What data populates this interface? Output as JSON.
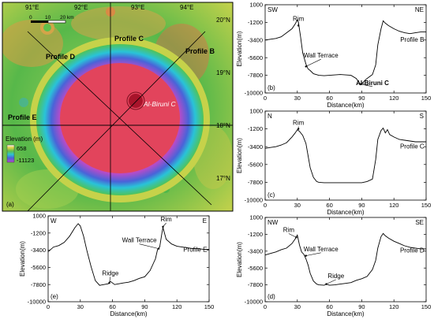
{
  "map": {
    "panel_label": "(a)",
    "lon_labels": [
      "91°E",
      "92°E",
      "93°E",
      "94°E"
    ],
    "lat_labels": [
      "20°N",
      "19°N",
      "18°N",
      "17°N"
    ],
    "scale_ticks": [
      "0",
      "10",
      "20 km"
    ],
    "profile_labels": [
      "Profile C",
      "Profile B",
      "Profile D",
      "Profile E"
    ],
    "crater_label": "Al-Biruni C",
    "legend": {
      "title": "Elevation (m)",
      "high": "658",
      "low": "-11123"
    },
    "colors": {
      "rim_green": "#5fb845",
      "floor_red": "#e2445c",
      "wall_blue": "#4a63d8",
      "wall_violet": "#b44cc9"
    }
  },
  "chart_data": [
    {
      "type": "line",
      "panel_label": "(b)",
      "profile_label": "Profile  B",
      "dir_left": "SW",
      "dir_right": "NE",
      "xlabel": "Distance(km)",
      "ylabel": "Elevation(m)",
      "xlim": [
        0,
        150
      ],
      "ylim": [
        -10000,
        1000
      ],
      "xticks": [
        0,
        30,
        60,
        90,
        120,
        150
      ],
      "yticks": [
        1000,
        -1200,
        -3400,
        -5600,
        -7800,
        -10000
      ],
      "annotations": [
        {
          "text": "Rim",
          "x": 31,
          "y": -1600,
          "ax": 31,
          "ay": -1000
        },
        {
          "text": "Wall Terrace",
          "x": 38,
          "y": -6700,
          "ax": 52,
          "ay": -5600
        },
        {
          "text": "Al-Biruni C",
          "x": 89,
          "y": -8900,
          "ax": 100,
          "ay": -9000,
          "bold": true
        }
      ],
      "x": [
        0,
        5,
        10,
        15,
        20,
        25,
        28,
        30,
        31,
        33,
        35,
        38,
        40,
        42,
        45,
        50,
        55,
        60,
        70,
        80,
        85,
        87,
        89,
        91,
        94,
        97,
        100,
        103,
        105,
        108,
        110,
        112,
        115,
        120,
        125,
        130,
        135,
        140,
        145,
        150
      ],
      "y": [
        -3400,
        -3300,
        -3200,
        -3000,
        -2500,
        -2000,
        -1400,
        -900,
        -1200,
        -3000,
        -5000,
        -6400,
        -7000,
        -7200,
        -7600,
        -7800,
        -7850,
        -7800,
        -7700,
        -7800,
        -8200,
        -8600,
        -9000,
        -8700,
        -8300,
        -8000,
        -7700,
        -6500,
        -4000,
        -2000,
        -1000,
        -1300,
        -1600,
        -2000,
        -2300,
        -2500,
        -2600,
        -2500,
        -2400,
        -2400
      ]
    },
    {
      "type": "line",
      "panel_label": "(c)",
      "profile_label": "Profile  C",
      "dir_left": "N",
      "dir_right": "S",
      "xlabel": "Distance(km)",
      "ylabel": "Elevation(m)",
      "xlim": [
        0,
        150
      ],
      "ylim": [
        -10000,
        1000
      ],
      "xticks": [
        0,
        30,
        60,
        90,
        120,
        150
      ],
      "yticks": [
        1000,
        -1200,
        -3400,
        -5600,
        -7800,
        -10000
      ],
      "annotations": [
        {
          "text": "Rim",
          "x": 31,
          "y": -1200,
          "ax": 31,
          "ay": -700
        }
      ],
      "x": [
        0,
        5,
        10,
        15,
        20,
        25,
        28,
        30,
        32,
        35,
        38,
        40,
        42,
        45,
        48,
        50,
        55,
        60,
        70,
        80,
        90,
        95,
        100,
        103,
        105,
        108,
        110,
        112,
        114,
        116,
        120,
        125,
        130,
        135,
        140,
        145,
        150
      ],
      "y": [
        -3600,
        -3500,
        -3400,
        -3200,
        -2900,
        -2200,
        -1700,
        -1300,
        -1500,
        -2000,
        -3000,
        -4500,
        -6000,
        -7200,
        -7700,
        -7800,
        -7850,
        -7850,
        -7850,
        -7850,
        -7850,
        -7700,
        -7400,
        -5000,
        -2500,
        -1400,
        -1100,
        -1700,
        -1300,
        -1900,
        -2200,
        -2500,
        -2600,
        -2700,
        -2800,
        -2800,
        -2800
      ]
    },
    {
      "type": "line",
      "panel_label": "(e)",
      "profile_label": "Profile E",
      "dir_left": "W",
      "dir_right": "E",
      "xlabel": "Distance(km)",
      "ylabel": "Elevation(m)",
      "xlim": [
        0,
        150
      ],
      "ylim": [
        -10000,
        1000
      ],
      "xticks": [
        0,
        30,
        60,
        90,
        120,
        150
      ],
      "yticks": [
        1000,
        -1200,
        -3400,
        -5600,
        -7800,
        -10000
      ],
      "annotations": [
        {
          "text": "Rim",
          "x": 107,
          "y": -400,
          "ax": 110,
          "ay": 300
        },
        {
          "text": "Wall Terrace",
          "x": 103,
          "y": -3200,
          "ax": 85,
          "ay": -2400
        },
        {
          "text": "Ridge",
          "x": 57,
          "y": -7600,
          "ax": 58,
          "ay": -6600
        }
      ],
      "x": [
        0,
        5,
        10,
        15,
        20,
        25,
        28,
        30,
        33,
        36,
        40,
        44,
        48,
        52,
        56,
        58,
        62,
        66,
        70,
        75,
        80,
        85,
        90,
        95,
        100,
        102,
        104,
        106,
        107,
        110,
        115,
        120,
        125,
        130,
        135,
        140,
        145,
        150
      ],
      "y": [
        -3600,
        -3000,
        -2800,
        -2400,
        -1600,
        -500,
        0,
        -300,
        -1600,
        -3400,
        -5500,
        -7300,
        -7900,
        -7800,
        -7700,
        -7400,
        -7800,
        -7700,
        -7600,
        -7500,
        -7300,
        -7000,
        -6800,
        -6000,
        -4500,
        -3300,
        -3000,
        -1200,
        -500,
        -2000,
        -2600,
        -2900,
        -3000,
        -3100,
        -3200,
        -3200,
        -3300,
        -3300
      ]
    },
    {
      "type": "line",
      "panel_label": "(d)",
      "profile_label": "Profile D",
      "dir_left": "NW",
      "dir_right": "SE",
      "xlabel": "Distance(km)",
      "ylabel": "Elevation(m)",
      "xlim": [
        0,
        150
      ],
      "ylim": [
        -10000,
        1000
      ],
      "xticks": [
        0,
        30,
        60,
        90,
        120,
        150
      ],
      "yticks": [
        1000,
        -1200,
        -3400,
        -5600,
        -7800,
        -10000
      ],
      "annotations": [
        {
          "text": "Rim",
          "x": 29,
          "y": -1600,
          "ax": 22,
          "ay": -900
        },
        {
          "text": "Wall Terrace",
          "x": 38,
          "y": -4000,
          "ax": 52,
          "ay": -3400
        },
        {
          "text": "Ridge",
          "x": 57,
          "y": -7700,
          "ax": 66,
          "ay": -6900
        }
      ],
      "x": [
        0,
        5,
        10,
        15,
        20,
        25,
        28,
        30,
        32,
        34,
        36,
        38,
        40,
        42,
        45,
        48,
        50,
        55,
        57,
        60,
        65,
        70,
        75,
        80,
        85,
        90,
        95,
        100,
        103,
        105,
        108,
        110,
        112,
        115,
        120,
        125,
        130,
        135,
        140,
        145,
        150
      ],
      "y": [
        -3900,
        -3700,
        -3500,
        -3200,
        -3000,
        -2400,
        -1800,
        -1300,
        -2600,
        -3500,
        -3800,
        -4400,
        -5200,
        -6300,
        -7300,
        -7700,
        -7800,
        -7850,
        -7700,
        -7850,
        -7800,
        -7700,
        -7600,
        -7500,
        -7200,
        -7000,
        -6700,
        -5800,
        -4600,
        -3000,
        -1500,
        -1100,
        -1400,
        -1700,
        -2100,
        -2400,
        -2700,
        -2900,
        -3000,
        -3100,
        -3100
      ]
    }
  ]
}
